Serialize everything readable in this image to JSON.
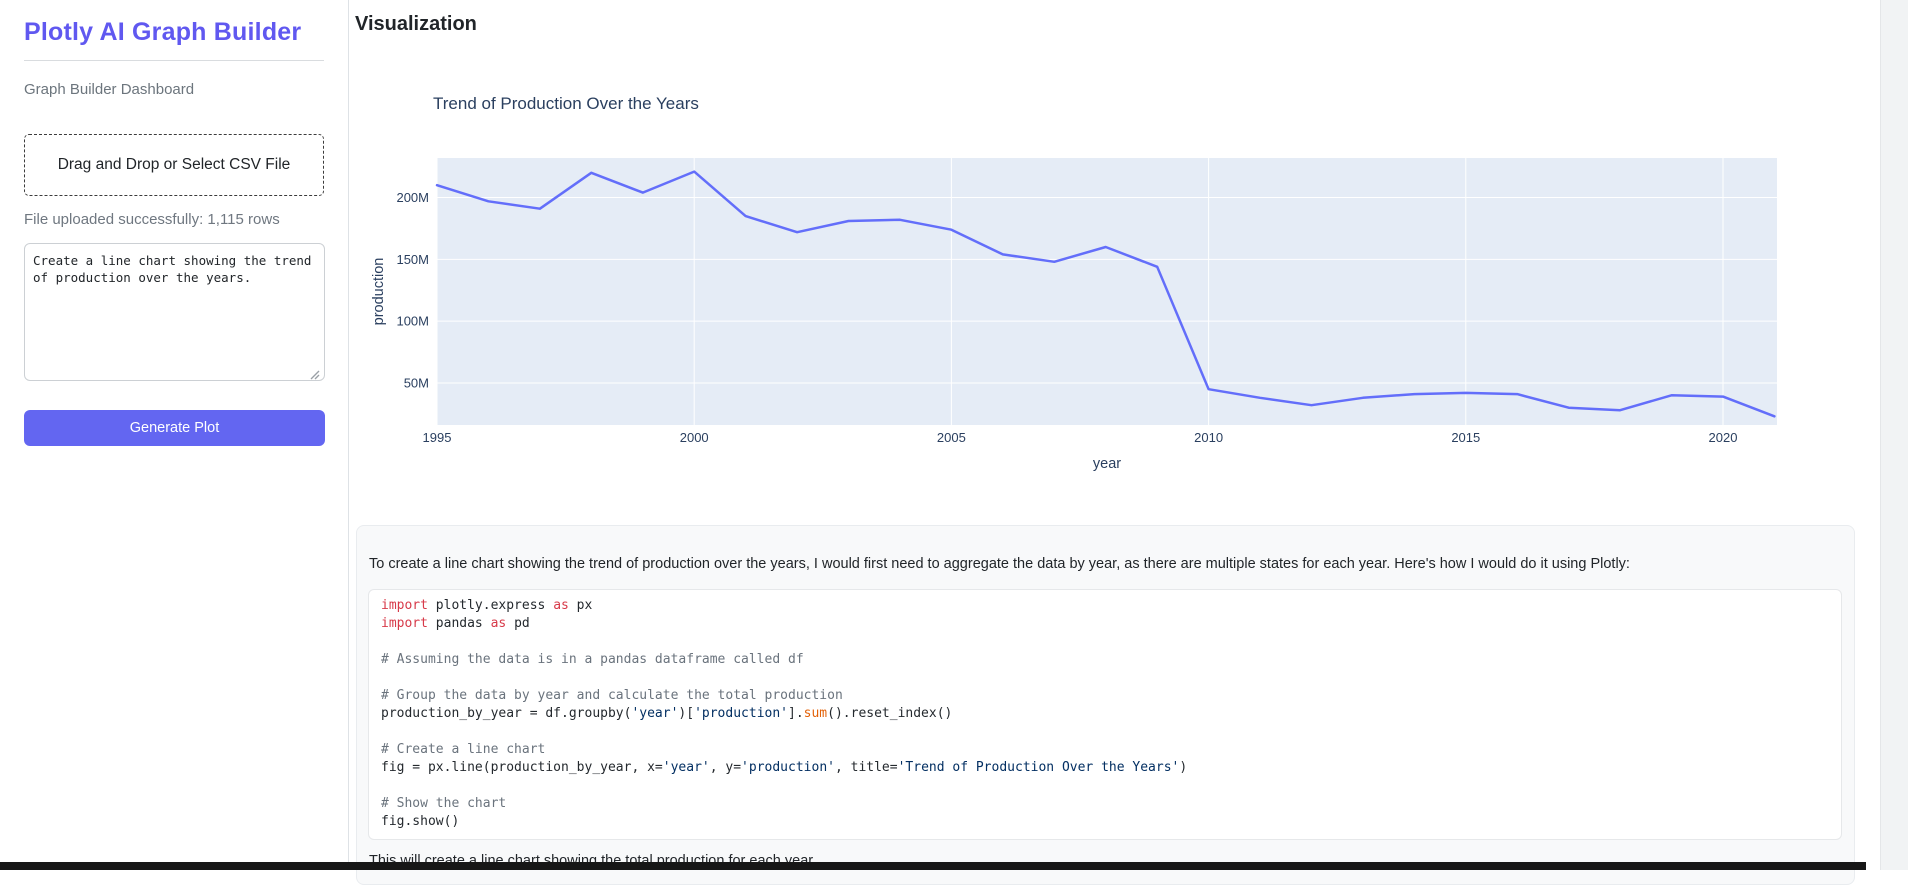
{
  "sidebar": {
    "title": "Plotly AI Graph Builder",
    "subtitle": "Graph Builder Dashboard",
    "upload_label": "Drag and Drop or Select CSV File",
    "upload_status": "File uploaded successfully: 1,115 rows",
    "prompt_value": "Create a line chart showing the trend\nof production over the years.",
    "generate_button_label": "Generate Plot",
    "accent_color": "#6366f1"
  },
  "main": {
    "heading": "Visualization",
    "explanation": {
      "intro": "To create a line chart showing the trend of production over the years, I would first need to aggregate the data by year, as there are multiple states for each year. Here's how I would do it using Plotly:",
      "outro": "This will create a line chart showing the total production for each year.",
      "code_lines": [
        [
          [
            "k",
            "import"
          ],
          [
            "d",
            " plotly.express "
          ],
          [
            "k",
            "as"
          ],
          [
            "d",
            " px"
          ]
        ],
        [
          [
            "k",
            "import"
          ],
          [
            "d",
            " pandas "
          ],
          [
            "k",
            "as"
          ],
          [
            "d",
            " pd"
          ]
        ],
        [],
        [
          [
            "c",
            "# Assuming the data is in a pandas dataframe called df"
          ]
        ],
        [],
        [
          [
            "c",
            "# Group the data by year and calculate the total production"
          ]
        ],
        [
          [
            "d",
            "production_by_year = df.groupby("
          ],
          [
            "s",
            "'year'"
          ],
          [
            "d",
            ")["
          ],
          [
            "s",
            "'production'"
          ],
          [
            "d",
            "]."
          ],
          [
            "b",
            "sum"
          ],
          [
            "d",
            "().reset_index()"
          ]
        ],
        [],
        [
          [
            "c",
            "# Create a line chart"
          ]
        ],
        [
          [
            "d",
            "fig = px.line(production_by_year, x="
          ],
          [
            "s",
            "'year'"
          ],
          [
            "d",
            ", y="
          ],
          [
            "s",
            "'production'"
          ],
          [
            "d",
            ", title="
          ],
          [
            "s",
            "'Trend of Production Over the Years'"
          ],
          [
            "d",
            ")"
          ]
        ],
        [],
        [
          [
            "c",
            "# Show the chart"
          ]
        ],
        [
          [
            "d",
            "fig.show()"
          ]
        ]
      ]
    }
  },
  "chart_data": {
    "type": "line",
    "title": "Trend of Production Over the Years",
    "xlabel": "year",
    "ylabel": "production",
    "x": [
      1995,
      1996,
      1997,
      1998,
      1999,
      2000,
      2001,
      2002,
      2003,
      2004,
      2005,
      2006,
      2007,
      2008,
      2009,
      2010,
      2011,
      2012,
      2013,
      2014,
      2015,
      2016,
      2017,
      2018,
      2019,
      2020,
      2021
    ],
    "y": [
      210,
      197,
      191,
      220,
      204,
      221,
      185,
      172,
      181,
      182,
      174,
      154,
      148,
      160,
      144,
      45,
      38,
      32,
      38,
      41,
      42,
      41,
      30,
      28,
      40,
      39,
      23
    ],
    "y_unit_suffix": "M",
    "xticks": [
      1995,
      2000,
      2005,
      2010,
      2015,
      2020
    ],
    "yticks": [
      50,
      100,
      150,
      200
    ],
    "xlim": [
      1995,
      2021.05
    ],
    "ylim": [
      16,
      232
    ],
    "grid": true,
    "legend": "none",
    "line_color": "#636efa",
    "plot_bg": "#e5ecf6",
    "grid_color": "#ffffff",
    "axis_text_color": "#2a3f5f"
  }
}
